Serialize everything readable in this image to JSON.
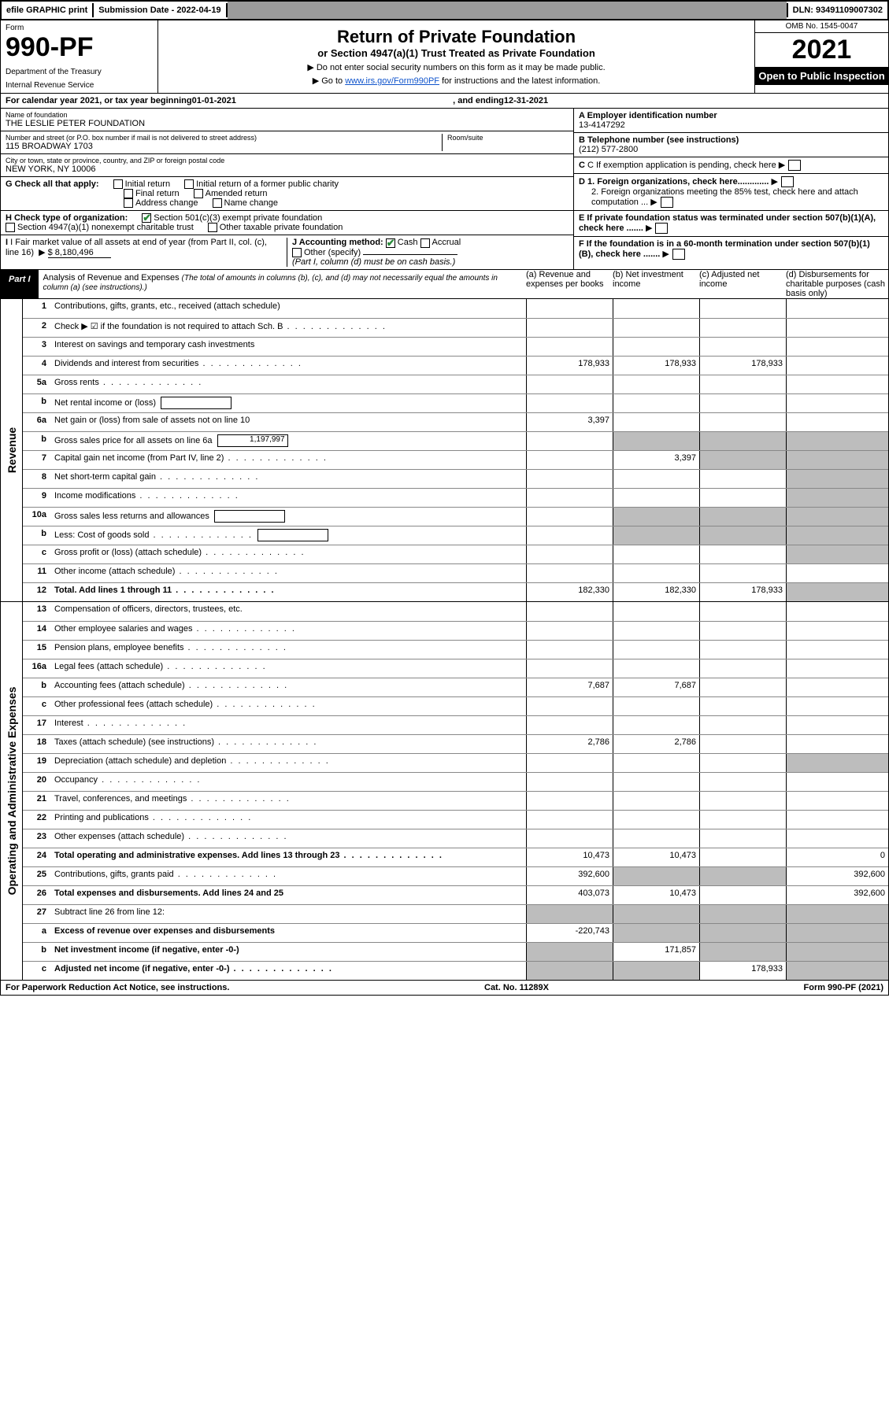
{
  "colors": {
    "black": "#000000",
    "white": "#ffffff",
    "gray_header": "#9b9b9b",
    "gray_shade": "#bdbdbd",
    "link": "#1155cc",
    "check_green": "#2a8a3a"
  },
  "topbar": {
    "efile": "efile GRAPHIC print",
    "submission_label": "Submission Date - 2022-04-19",
    "dln": "DLN: 93491109007302"
  },
  "header": {
    "form_word": "Form",
    "form_no": "990-PF",
    "dept": "Department of the Treasury",
    "irs": "Internal Revenue Service",
    "title": "Return of Private Foundation",
    "subtitle": "or Section 4947(a)(1) Trust Treated as Private Foundation",
    "instr1": "▶ Do not enter social security numbers on this form as it may be made public.",
    "instr2_pre": "▶ Go to ",
    "instr2_link": "www.irs.gov/Form990PF",
    "instr2_post": " for instructions and the latest information.",
    "omb": "OMB No. 1545-0047",
    "year": "2021",
    "open": "Open to Public Inspection"
  },
  "calendar": {
    "pre": "For calendar year 2021, or tax year beginning ",
    "begin": "01-01-2021",
    "mid": ", and ending ",
    "end": "12-31-2021"
  },
  "ident": {
    "name_lbl": "Name of foundation",
    "name_val": "THE LESLIE PETER FOUNDATION",
    "addr_lbl": "Number and street (or P.O. box number if mail is not delivered to street address)",
    "addr_val": "115 BROADWAY 1703",
    "room_lbl": "Room/suite",
    "city_lbl": "City or town, state or province, country, and ZIP or foreign postal code",
    "city_val": "NEW YORK, NY  10006",
    "ein_lbl": "A Employer identification number",
    "ein_val": "13-4147292",
    "tel_lbl": "B Telephone number (see instructions)",
    "tel_val": "(212) 577-2800",
    "c_txt": "C If exemption application is pending, check here",
    "d1": "D 1. Foreign organizations, check here.............",
    "d2": "2. Foreign organizations meeting the 85% test, check here and attach computation ...",
    "e_txt": "E  If private foundation status was terminated under section 507(b)(1)(A), check here .......",
    "f_txt": "F  If the foundation is in a 60-month termination under section 507(b)(1)(B), check here .......",
    "g_lbl": "G Check all that apply:",
    "g_opts": [
      "Initial return",
      "Final return",
      "Address change",
      "Initial return of a former public charity",
      "Amended return",
      "Name change"
    ],
    "h_lbl": "H Check type of organization:",
    "h_opts": [
      "Section 501(c)(3) exempt private foundation",
      "Section 4947(a)(1) nonexempt charitable trust",
      "Other taxable private foundation"
    ],
    "i_lbl": "I Fair market value of all assets at end of year (from Part II, col. (c), line 16)",
    "i_val": "$  8,180,496",
    "j_lbl": "J Accounting method:",
    "j_opts": [
      "Cash",
      "Accrual",
      "Other (specify)"
    ],
    "j_note": "(Part I, column (d) must be on cash basis.)"
  },
  "part1": {
    "tab": "Part I",
    "title": "Analysis of Revenue and Expenses",
    "title_ital": " (The total of amounts in columns (b), (c), and (d) may not necessarily equal the amounts in column (a) (see instructions).)",
    "col_a": "(a)   Revenue and expenses per books",
    "col_b": "(b)   Net investment income",
    "col_c": "(c)   Adjusted net income",
    "col_d": "(d)   Disbursements for charitable purposes (cash basis only)"
  },
  "side_labels": {
    "rev": "Revenue",
    "exp": "Operating and Administrative Expenses"
  },
  "rows_rev": [
    {
      "n": "1",
      "d": "Contributions, gifts, grants, etc., received (attach schedule)",
      "a": "",
      "b": "",
      "c": "",
      "dd": ""
    },
    {
      "n": "2",
      "d": "Check ▶ ☑ if the foundation is not required to attach Sch. B",
      "dots": true,
      "a": "",
      "b": "",
      "c": "",
      "dd": ""
    },
    {
      "n": "3",
      "d": "Interest on savings and temporary cash investments",
      "a": "",
      "b": "",
      "c": "",
      "dd": ""
    },
    {
      "n": "4",
      "d": "Dividends and interest from securities",
      "dots": true,
      "a": "178,933",
      "b": "178,933",
      "c": "178,933",
      "dd": ""
    },
    {
      "n": "5a",
      "d": "Gross rents",
      "dots": true,
      "a": "",
      "b": "",
      "c": "",
      "dd": ""
    },
    {
      "n": "b",
      "d": "Net rental income or (loss)",
      "box": "",
      "a": "",
      "b": "",
      "c": "",
      "dd": ""
    },
    {
      "n": "6a",
      "d": "Net gain or (loss) from sale of assets not on line 10",
      "a": "3,397",
      "b": "",
      "c": "",
      "dd": ""
    },
    {
      "n": "b",
      "d": "Gross sales price for all assets on line 6a",
      "box": "1,197,997",
      "shade_b": true,
      "shade_c": true,
      "shade_d": true
    },
    {
      "n": "7",
      "d": "Capital gain net income (from Part IV, line 2)",
      "dots": true,
      "a": "",
      "b": "3,397",
      "c": "",
      "dd": "",
      "shade_c": true,
      "shade_d": true
    },
    {
      "n": "8",
      "d": "Net short-term capital gain",
      "dots": true,
      "a": "",
      "b": "",
      "c": "",
      "dd": "",
      "shade_d": true
    },
    {
      "n": "9",
      "d": "Income modifications",
      "dots": true,
      "a": "",
      "b": "",
      "c": "",
      "dd": "",
      "shade_d": true
    },
    {
      "n": "10a",
      "d": "Gross sales less returns and allowances",
      "box": "",
      "shade_b": true,
      "shade_c": true,
      "shade_d": true
    },
    {
      "n": "b",
      "d": "Less: Cost of goods sold",
      "dots": true,
      "box": "",
      "shade_b": true,
      "shade_c": true,
      "shade_d": true
    },
    {
      "n": "c",
      "d": "Gross profit or (loss) (attach schedule)",
      "dots": true,
      "a": "",
      "b": "",
      "c": "",
      "dd": "",
      "shade_d": true
    },
    {
      "n": "11",
      "d": "Other income (attach schedule)",
      "dots": true,
      "a": "",
      "b": "",
      "c": "",
      "dd": ""
    },
    {
      "n": "12",
      "d": "Total. Add lines 1 through 11",
      "dots": true,
      "tot": true,
      "a": "182,330",
      "b": "182,330",
      "c": "178,933",
      "dd": "",
      "shade_d": true
    }
  ],
  "rows_exp": [
    {
      "n": "13",
      "d": "Compensation of officers, directors, trustees, etc.",
      "a": "",
      "b": "",
      "c": "",
      "dd": ""
    },
    {
      "n": "14",
      "d": "Other employee salaries and wages",
      "dots": true,
      "a": "",
      "b": "",
      "c": "",
      "dd": ""
    },
    {
      "n": "15",
      "d": "Pension plans, employee benefits",
      "dots": true,
      "a": "",
      "b": "",
      "c": "",
      "dd": ""
    },
    {
      "n": "16a",
      "d": "Legal fees (attach schedule)",
      "dots": true,
      "a": "",
      "b": "",
      "c": "",
      "dd": ""
    },
    {
      "n": "b",
      "d": "Accounting fees (attach schedule)",
      "dots": true,
      "a": "7,687",
      "b": "7,687",
      "c": "",
      "dd": ""
    },
    {
      "n": "c",
      "d": "Other professional fees (attach schedule)",
      "dots": true,
      "a": "",
      "b": "",
      "c": "",
      "dd": ""
    },
    {
      "n": "17",
      "d": "Interest",
      "dots": true,
      "a": "",
      "b": "",
      "c": "",
      "dd": ""
    },
    {
      "n": "18",
      "d": "Taxes (attach schedule) (see instructions)",
      "dots": true,
      "a": "2,786",
      "b": "2,786",
      "c": "",
      "dd": ""
    },
    {
      "n": "19",
      "d": "Depreciation (attach schedule) and depletion",
      "dots": true,
      "a": "",
      "b": "",
      "c": "",
      "dd": "",
      "shade_d": true
    },
    {
      "n": "20",
      "d": "Occupancy",
      "dots": true,
      "a": "",
      "b": "",
      "c": "",
      "dd": ""
    },
    {
      "n": "21",
      "d": "Travel, conferences, and meetings",
      "dots": true,
      "a": "",
      "b": "",
      "c": "",
      "dd": ""
    },
    {
      "n": "22",
      "d": "Printing and publications",
      "dots": true,
      "a": "",
      "b": "",
      "c": "",
      "dd": ""
    },
    {
      "n": "23",
      "d": "Other expenses (attach schedule)",
      "dots": true,
      "a": "",
      "b": "",
      "c": "",
      "dd": ""
    },
    {
      "n": "24",
      "d": "Total operating and administrative expenses. Add lines 13 through 23",
      "dots": true,
      "tot": true,
      "a": "10,473",
      "b": "10,473",
      "c": "",
      "dd": "0"
    },
    {
      "n": "25",
      "d": "Contributions, gifts, grants paid",
      "dots": true,
      "a": "392,600",
      "b": "",
      "c": "",
      "dd": "392,600",
      "shade_b": true,
      "shade_c": true
    },
    {
      "n": "26",
      "d": "Total expenses and disbursements. Add lines 24 and 25",
      "tot": true,
      "a": "403,073",
      "b": "10,473",
      "c": "",
      "dd": "392,600"
    },
    {
      "n": "27",
      "d": "Subtract line 26 from line 12:",
      "shade_a": true,
      "shade_b": true,
      "shade_c": true,
      "shade_d": true
    },
    {
      "n": "a",
      "d": "Excess of revenue over expenses and disbursements",
      "tot": true,
      "a": "-220,743",
      "b": "",
      "c": "",
      "dd": "",
      "shade_b": true,
      "shade_c": true,
      "shade_d": true
    },
    {
      "n": "b",
      "d": "Net investment income (if negative, enter -0-)",
      "tot": true,
      "a": "",
      "b": "171,857",
      "c": "",
      "dd": "",
      "shade_a": true,
      "shade_c": true,
      "shade_d": true
    },
    {
      "n": "c",
      "d": "Adjusted net income (if negative, enter -0-)",
      "dots": true,
      "tot": true,
      "a": "",
      "b": "",
      "c": "178,933",
      "dd": "",
      "shade_a": true,
      "shade_b": true,
      "shade_d": true
    }
  ],
  "footer": {
    "left": "For Paperwork Reduction Act Notice, see instructions.",
    "mid": "Cat. No. 11289X",
    "right": "Form 990-PF (2021)"
  }
}
